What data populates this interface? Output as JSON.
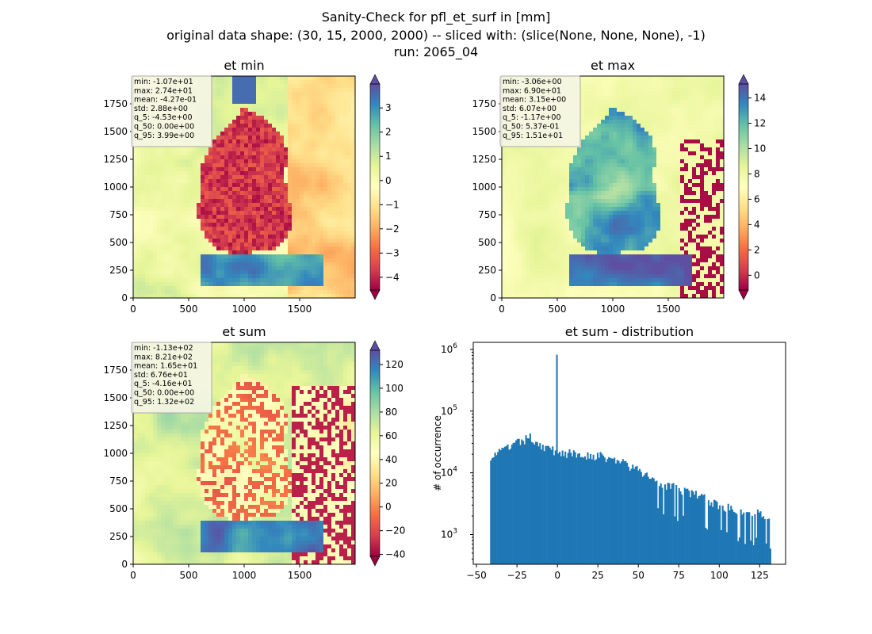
{
  "figure": {
    "suptitle": [
      "Sanity-Check for pfl_et_surf in [mm]",
      "original data shape: (30, 15, 2000, 2000) -- sliced with: (slice(None, None, None), -1)",
      "run: 2065_04"
    ]
  },
  "chart_data": [
    {
      "type": "heatmap",
      "title": "et min",
      "xlim": [
        0,
        2000
      ],
      "ylim": [
        0,
        2000
      ],
      "xticks": [
        "0",
        "500",
        "1000",
        "1500"
      ],
      "yticks": [
        "0",
        "250",
        "500",
        "750",
        "1000",
        "1250",
        "1500",
        "1750"
      ],
      "colorbar": {
        "cmap": "Spectral",
        "vmin": -4.53,
        "vmax": 3.99,
        "extend": "both",
        "ticks": [
          "3",
          "2",
          "1",
          "0",
          "−1",
          "−2",
          "−3",
          "−4"
        ]
      },
      "stats": [
        "min: -1.07e+01",
        "max: 2.74e+01",
        "mean: -4.27e-01",
        "std: 2.88e+00",
        "q_5: -4.53e+00",
        "q_50: 0.00e+00",
        "q_95: 3.99e+00"
      ]
    },
    {
      "type": "heatmap",
      "title": "et max",
      "xlim": [
        0,
        2000
      ],
      "ylim": [
        0,
        2000
      ],
      "xticks": [
        "0",
        "500",
        "1000",
        "1500"
      ],
      "yticks": [
        "0",
        "250",
        "500",
        "750",
        "1000",
        "1250",
        "1500",
        "1750"
      ],
      "colorbar": {
        "cmap": "Spectral",
        "vmin": -1.17,
        "vmax": 15.1,
        "extend": "both",
        "ticks": [
          "14",
          "12",
          "10",
          "8",
          "6",
          "4",
          "2",
          "0"
        ]
      },
      "stats": [
        "min: -3.06e+00",
        "max: 6.90e+01",
        "mean: 3.15e+00",
        "std: 6.07e+00",
        "q_5: -1.17e+00",
        "q_50: 5.37e-01",
        "q_95: 1.51e+01"
      ]
    },
    {
      "type": "heatmap",
      "title": "et sum",
      "xlim": [
        0,
        2000
      ],
      "ylim": [
        0,
        2000
      ],
      "xticks": [
        "0",
        "500",
        "1000",
        "1500"
      ],
      "yticks": [
        "0",
        "250",
        "500",
        "750",
        "1000",
        "1250",
        "1500",
        "1750"
      ],
      "colorbar": {
        "cmap": "Spectral",
        "vmin": -41.6,
        "vmax": 132,
        "extend": "both",
        "ticks": [
          "120",
          "100",
          "80",
          "60",
          "40",
          "20",
          "0",
          "−20",
          "−40"
        ]
      },
      "stats": [
        "min: -1.13e+02",
        "max: 8.21e+02",
        "mean: 1.65e+01",
        "std: 6.76e+01",
        "q_5: -4.16e+01",
        "q_50: 0.00e+00",
        "q_95: 1.32e+02"
      ]
    },
    {
      "type": "bar",
      "title": "et sum - distribution",
      "ylabel": "# of occurrence",
      "yscale": "log",
      "xlim": [
        -52,
        141
      ],
      "ylim": [
        330,
        1300000
      ],
      "xticks": [
        "−50",
        "−25",
        "0",
        "25",
        "50",
        "75",
        "100",
        "125"
      ],
      "yticks": [
        "10^3",
        "10^4",
        "10^5",
        "10^6"
      ],
      "color": "#1f77b4",
      "bin_range": [
        -41.6,
        132
      ],
      "anchors": [
        [
          -41.6,
          19000
        ],
        [
          -35,
          22000
        ],
        [
          -30,
          26000
        ],
        [
          -25,
          30000
        ],
        [
          -20,
          34000
        ],
        [
          -17,
          38000
        ],
        [
          -10,
          28000
        ],
        [
          -5,
          24000
        ],
        [
          0,
          22000
        ],
        [
          10,
          20000
        ],
        [
          25,
          19000
        ],
        [
          40,
          15000
        ],
        [
          55,
          9000
        ],
        [
          70,
          6000
        ],
        [
          85,
          4500
        ],
        [
          100,
          3000
        ],
        [
          115,
          2400
        ],
        [
          132,
          2000
        ]
      ],
      "spikes": [
        [
          -0.5,
          820000
        ]
      ]
    }
  ]
}
